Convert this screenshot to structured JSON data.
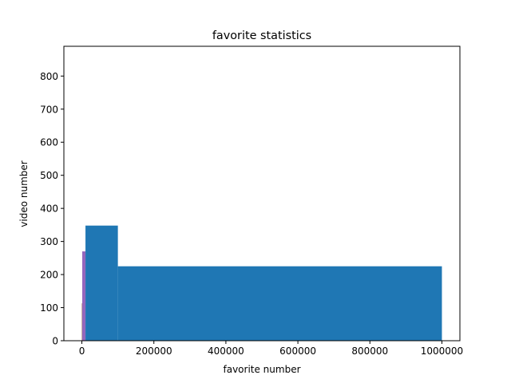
{
  "chart_data": {
    "type": "bar",
    "title": "favorite statistics",
    "xlabel": "favorite number",
    "ylabel": "video number",
    "xlim": [
      -50000,
      1050000
    ],
    "ylim": [
      0,
      890
    ],
    "xticks": [
      0,
      200000,
      400000,
      600000,
      800000,
      1000000
    ],
    "xtick_labels": [
      "0",
      "200000",
      "400000",
      "600000",
      "800000",
      "1000000"
    ],
    "yticks": [
      0,
      100,
      200,
      300,
      400,
      500,
      600,
      700,
      800
    ],
    "ytick_labels": [
      "0",
      "100",
      "200",
      "300",
      "400",
      "500",
      "600",
      "700",
      "800"
    ],
    "grid": false,
    "series": [
      {
        "color": "#1f77b4",
        "bins": [
          {
            "x0": 10000,
            "x1": 100000,
            "value": 348
          },
          {
            "x0": 100000,
            "x1": 1000000,
            "value": 225
          }
        ]
      },
      {
        "color": "#9467bd",
        "bins": [
          {
            "x0": 1000,
            "x1": 10000,
            "value": 270
          }
        ]
      },
      {
        "color": "#8c564b",
        "bins": [
          {
            "x0": 0,
            "x1": 1000,
            "value": 113
          }
        ]
      }
    ]
  }
}
